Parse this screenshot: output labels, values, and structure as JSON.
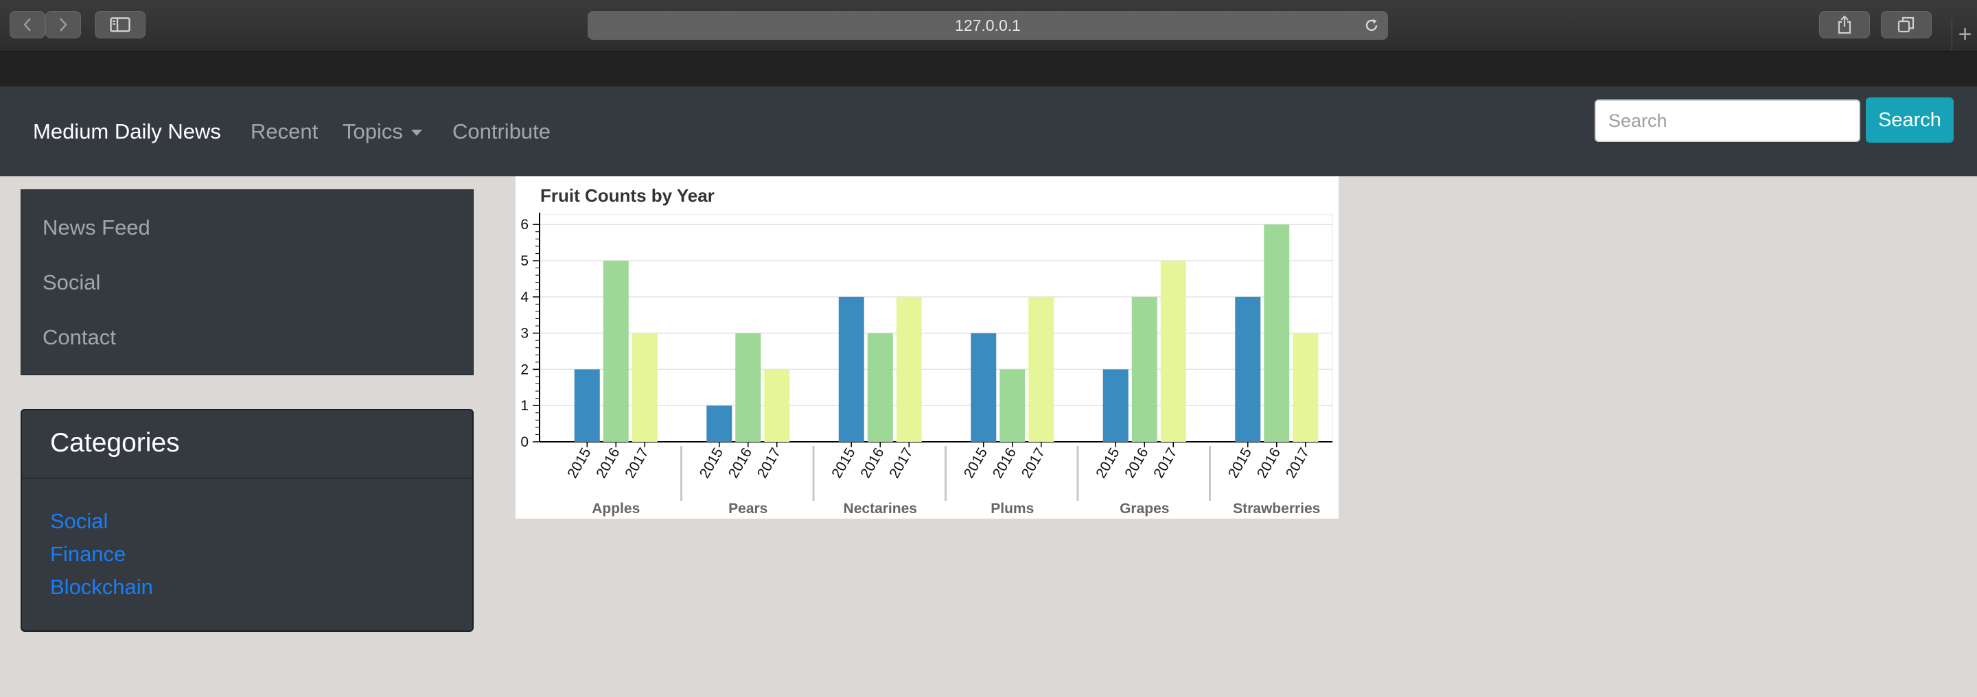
{
  "browser": {
    "url": "127.0.0.1",
    "new_tab_symbol": "+"
  },
  "navbar": {
    "brand": "Medium Daily News",
    "links": [
      {
        "label": "Recent"
      },
      {
        "label": "Topics"
      },
      {
        "label": "Contribute"
      }
    ],
    "search": {
      "placeholder": "Search",
      "button_label": "Search"
    }
  },
  "sidebar": {
    "menu": [
      {
        "label": "News Feed"
      },
      {
        "label": "Social"
      },
      {
        "label": "Contact"
      }
    ],
    "categories": {
      "title": "Categories",
      "links": [
        {
          "label": "Social"
        },
        {
          "label": "Finance"
        },
        {
          "label": "Blockchain"
        }
      ]
    }
  },
  "colors": {
    "navbar_bg": "#343a40",
    "link_blue": "#1a7ef5",
    "search_button": "#17a2b8",
    "series_2015": "#3a8bbf",
    "series_2016": "#9dd897",
    "series_2017": "#e6f597"
  },
  "chart_data": {
    "type": "bar",
    "title": "Fruit Counts by Year",
    "xlabel": "",
    "ylabel": "",
    "ylim": [
      0,
      6
    ],
    "yticks": [
      0,
      1,
      2,
      3,
      4,
      5,
      6
    ],
    "grid": true,
    "categories": [
      "Apples",
      "Pears",
      "Nectarines",
      "Plums",
      "Grapes",
      "Strawberries"
    ],
    "series": [
      {
        "name": "2015",
        "color": "#3a8bbf",
        "values": [
          2,
          1,
          4,
          3,
          2,
          4
        ]
      },
      {
        "name": "2016",
        "color": "#9dd897",
        "values": [
          5,
          3,
          3,
          2,
          4,
          6
        ]
      },
      {
        "name": "2017",
        "color": "#e6f597",
        "values": [
          3,
          2,
          4,
          4,
          5,
          3
        ]
      }
    ]
  }
}
